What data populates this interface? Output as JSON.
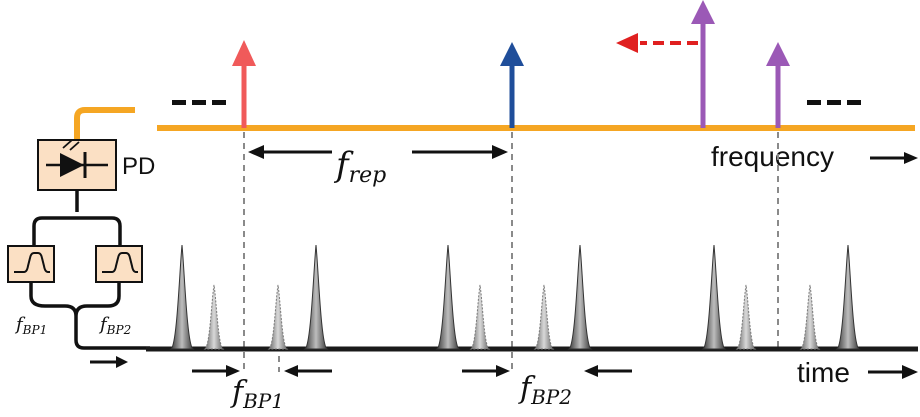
{
  "labels": {
    "pd": "PD",
    "frequency": "frequency",
    "time": "time",
    "f_rep_main": "f",
    "f_rep_sub": "rep",
    "f_bp1_main": "f",
    "f_bp1_sub": "BP1",
    "f_bp2_main": "f",
    "f_bp2_sub": "BP2",
    "left_bp1_main": "f",
    "left_bp1_sub": "BP1",
    "left_bp2_main": "f",
    "left_bp2_sub": "BP2",
    "ellipsis": "---"
  },
  "colors": {
    "fiber": "#f5a623",
    "line_red": "#f05a5a",
    "line_blue": "#1f4e9a",
    "line_purple": "#9b59b6",
    "arrow_red_dashed": "#e02020",
    "box_fill": "#fbe0c4",
    "axis": "#1a1a1a",
    "pulse_dark": "#555555",
    "pulse_light": "#9a9a9a"
  },
  "icons": {
    "photodiode": "photodiode-icon",
    "bandpass": "bandpass-filter-icon"
  }
}
